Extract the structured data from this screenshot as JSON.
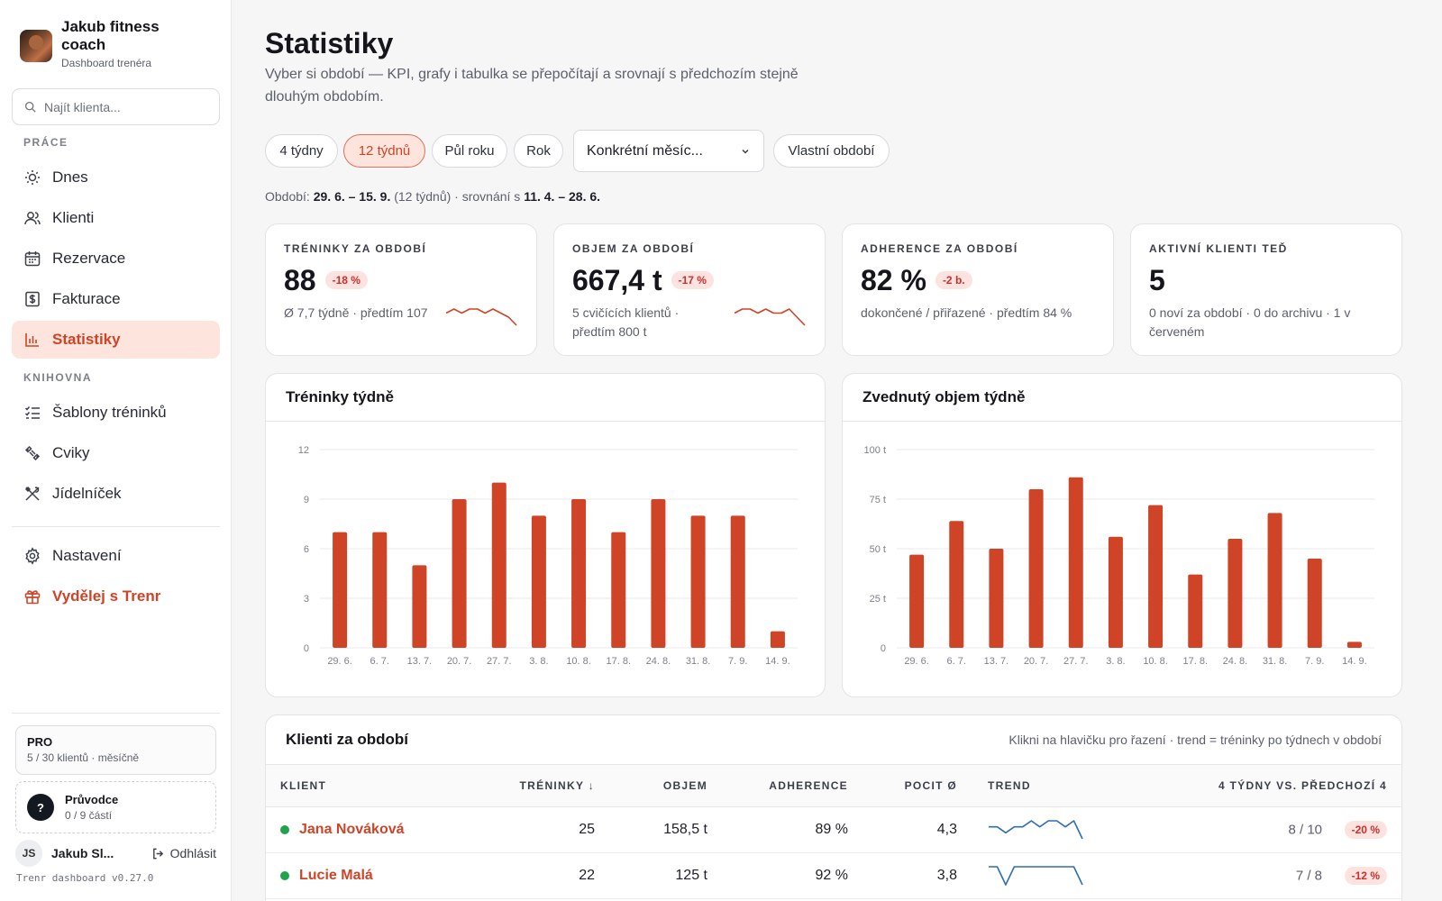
{
  "brand": {
    "name": "Jakub fitness coach",
    "role": "Dashboard trenéra"
  },
  "search": {
    "placeholder": "Najít klienta..."
  },
  "nav": {
    "section_work": "PRÁCE",
    "section_library": "KNIHOVNA",
    "items": [
      {
        "label": "Dnes",
        "icon": "sun-icon"
      },
      {
        "label": "Klienti",
        "icon": "users-icon"
      },
      {
        "label": "Rezervace",
        "icon": "calendar-icon"
      },
      {
        "label": "Fakturace",
        "icon": "invoice-icon"
      },
      {
        "label": "Statistiky",
        "icon": "bar-chart-icon",
        "active": true
      },
      {
        "label": "Šablony tréninků",
        "icon": "checklist-icon"
      },
      {
        "label": "Cviky",
        "icon": "dumbbell-icon"
      },
      {
        "label": "Jídelníček",
        "icon": "utensils-icon"
      },
      {
        "label": "Nastavení",
        "icon": "gear-icon"
      },
      {
        "label": "Vydělej s Trenr",
        "icon": "gift-icon"
      }
    ]
  },
  "plan": {
    "title": "PRO",
    "detail": "5 / 30 klientů · měsíčně"
  },
  "guide": {
    "mark": "?",
    "title": "Průvodce",
    "detail": "0 / 9 částí"
  },
  "user": {
    "initials": "JS",
    "name": "Jakub Sl...",
    "logout": "Odhlásit"
  },
  "version": "Trenr dashboard v0.27.0",
  "page": {
    "title": "Statistiky",
    "subtitle": "Vyber si období — KPI, grafy i tabulka se přepočítají a srovnají s předchozím stejně dlouhým obdobím."
  },
  "filters": {
    "pills": [
      "4 týdny",
      "12 týdnů",
      "Půl roku",
      "Rok"
    ],
    "active": "12 týdnů",
    "month_select": "Konkrétní měsíc...",
    "custom": "Vlastní období"
  },
  "period": {
    "prefix": "Období:",
    "range": "29. 6. – 15. 9.",
    "weeks": "(12 týdnů) · srovnání s",
    "compare": "11. 4. – 28. 6."
  },
  "kpis": [
    {
      "label": "TRÉNINKY ZA OBDOBÍ",
      "value": "88",
      "delta": "-18 %",
      "note": "Ø 7,7 týdně · předtím 107"
    },
    {
      "label": "OBJEM ZA OBDOBÍ",
      "value": "667,4 t",
      "delta": "-17 %",
      "note": "5 cvičících klientů · předtím 800 t"
    },
    {
      "label": "ADHERENCE ZA OBDOBÍ",
      "value": "82 %",
      "delta": "-2 b.",
      "note": "dokončené / přiřazené · předtím 84 %"
    },
    {
      "label": "AKTIVNÍ KLIENTI TEĎ",
      "value": "5",
      "note": "0 noví za období · 0 do archivu · 1 v červeném"
    }
  ],
  "chart_data": [
    {
      "type": "bar",
      "title": "Tréninky týdně",
      "categories": [
        "29. 6.",
        "6. 7.",
        "13. 7.",
        "20. 7.",
        "27. 7.",
        "3. 8.",
        "10. 8.",
        "17. 8.",
        "24. 8.",
        "31. 8.",
        "7. 9.",
        "14. 9."
      ],
      "values": [
        7,
        7,
        5,
        9,
        10,
        8,
        9,
        7,
        9,
        8,
        8,
        1
      ],
      "ylim": [
        0,
        12
      ],
      "yticks": [
        "0",
        "3",
        "6",
        "9",
        "12"
      ],
      "ytick_values": [
        0,
        3,
        6,
        9,
        12
      ],
      "color": "#cf4427",
      "grid": true
    },
    {
      "type": "bar",
      "title": "Zvednutý objem týdně",
      "categories": [
        "29. 6.",
        "6. 7.",
        "13. 7.",
        "20. 7.",
        "27. 7.",
        "3. 8.",
        "10. 8.",
        "17. 8.",
        "24. 8.",
        "31. 8.",
        "7. 9.",
        "14. 9."
      ],
      "values": [
        47,
        64,
        50,
        80,
        86,
        56,
        72,
        37,
        55,
        68,
        45,
        3
      ],
      "ylim": [
        0,
        100
      ],
      "yticks": [
        "0",
        "25 t",
        "50 t",
        "75 t",
        "100 t"
      ],
      "ytick_values": [
        0,
        25,
        50,
        75,
        100
      ],
      "color": "#cf4427",
      "grid": true
    }
  ],
  "sparks": {
    "trainings": [
      6,
      7,
      6,
      7,
      7,
      6,
      7,
      6,
      5,
      3
    ],
    "volume": [
      6,
      7,
      7,
      6,
      7,
      6,
      6,
      7,
      5,
      3
    ]
  },
  "table": {
    "title": "Klienti za období",
    "hint": "Klikni na hlavičku pro řazení · trend = tréninky po týdnech v období",
    "columns": [
      "KLIENT",
      "TRÉNINKY ↓",
      "OBJEM",
      "ADHERENCE",
      "POCIT Ø",
      "TREND",
      "4 TÝDNY VS. PŘEDCHOZÍ 4"
    ],
    "rows": [
      {
        "name": "Jana Nováková",
        "trainings": "25",
        "volume": "158,5 t",
        "adherence": "89 %",
        "feel": "4,3",
        "cmp": "8 / 10",
        "delta": "-20 %",
        "trend": [
          2,
          2,
          1,
          2,
          2,
          3,
          2,
          3,
          3,
          2,
          3,
          0
        ]
      },
      {
        "name": "Lucie Malá",
        "trainings": "22",
        "volume": "125 t",
        "adherence": "92 %",
        "feel": "3,8",
        "cmp": "7 / 8",
        "delta": "-12 %",
        "trend": [
          2,
          2,
          1,
          2,
          2,
          2,
          2,
          2,
          2,
          2,
          2,
          1
        ]
      }
    ]
  }
}
